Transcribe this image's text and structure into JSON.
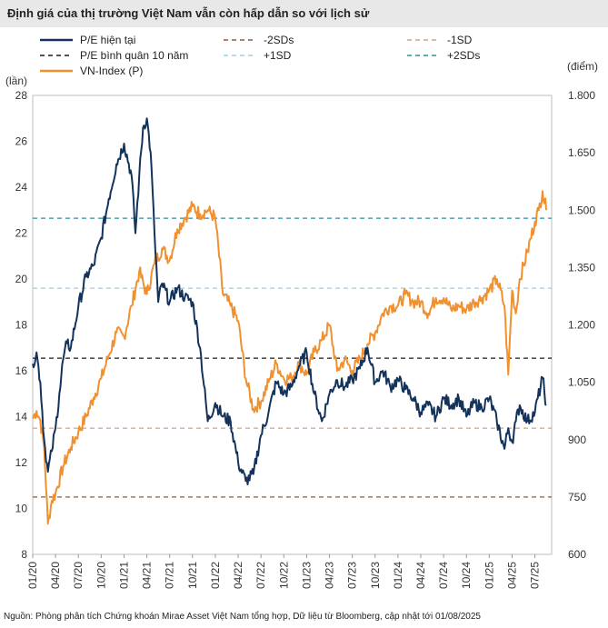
{
  "title": "Định giá của thị trường Việt Nam vẫn còn hấp dẫn so với lịch sử",
  "footer": "Nguồn: Phòng phân tích Chứng khoán Mirae Asset Việt Nam tổng hợp,  Dữ liệu từ Bloomberg, cập nhật tới 01/08/2025",
  "colors": {
    "pe": "#14335c",
    "vnindex": "#f0902f",
    "mean": "#1a1a1a",
    "minus_sd": "#c8a58c",
    "minus_2sd": "#8a5a44",
    "plus_sd": "#9fcde3",
    "plus_2sd": "#2f8fa6"
  },
  "chart_data": {
    "type": "line",
    "title": "Định giá của thị trường Việt Nam vẫn còn hấp dẫn so với lịch sử",
    "left_axis": {
      "label": "(lần)",
      "min": 8,
      "max": 28,
      "ticks": [
        "8",
        "10",
        "12",
        "14",
        "16",
        "18",
        "20",
        "22",
        "24",
        "26",
        "28"
      ]
    },
    "right_axis": {
      "label": "(điểm)",
      "min": 600,
      "max": 1800,
      "ticks": [
        "600",
        "750",
        "900",
        "1.050",
        "1.200",
        "1.350",
        "1.500",
        "1.650",
        "1.800"
      ]
    },
    "x_range": [
      "01/2020",
      "08/2025"
    ],
    "x_ticks": [
      "01/20",
      "04/20",
      "07/20",
      "10/20",
      "01/21",
      "04/21",
      "07/21",
      "10/21",
      "01/22",
      "04/22",
      "07/22",
      "10/22",
      "01/23",
      "04/23",
      "07/23",
      "10/23",
      "01/24",
      "04/24",
      "07/24",
      "10/24",
      "01/25",
      "04/25",
      "07/25"
    ],
    "legend": [
      {
        "key": "pe",
        "label": "P/E hiện tại",
        "style": "solid"
      },
      {
        "key": "minus_2sd",
        "label": "-2SDs",
        "style": "dashed"
      },
      {
        "key": "minus_sd",
        "label": "-1SD",
        "style": "dashed"
      },
      {
        "key": "mean",
        "label": "P/E bình quân 10 năm",
        "style": "dashed"
      },
      {
        "key": "plus_sd",
        "label": "+1SD",
        "style": "dashed"
      },
      {
        "key": "plus_2sd",
        "label": "+2SDs",
        "style": "dashed"
      },
      {
        "key": "vnindex",
        "label": "VN-Index (P)",
        "style": "solid"
      }
    ],
    "reference_lines": [
      {
        "key": "minus_2sd",
        "label": "-2SDs",
        "value": 10.5
      },
      {
        "key": "minus_sd",
        "label": "-1SD",
        "value": 13.5
      },
      {
        "key": "mean",
        "label": "P/E bình quân 10 năm",
        "value": 16.55
      },
      {
        "key": "plus_sd",
        "label": "+1SD",
        "value": 19.6
      },
      {
        "key": "plus_2sd",
        "label": "+2SDs",
        "value": 22.65
      }
    ],
    "series": [
      {
        "name": "P/E hiện tại",
        "axis": "left",
        "x": [
          0,
          0.5,
          1,
          1.5,
          2,
          2.5,
          3,
          3.5,
          4,
          4.5,
          5,
          6,
          7,
          8,
          9,
          10,
          11,
          12,
          13,
          13.5,
          14,
          14.5,
          15,
          15.5,
          16,
          16.5,
          17,
          18,
          19,
          20,
          21,
          22,
          23,
          24,
          25,
          26,
          27,
          28,
          29,
          30,
          31,
          32,
          33,
          34,
          35,
          36,
          37,
          38,
          39,
          40,
          41,
          42,
          43,
          44,
          45,
          46,
          47,
          48,
          49,
          50,
          51,
          52,
          53,
          54,
          55,
          56,
          57,
          58,
          59,
          60,
          61,
          62,
          62.5,
          63,
          63.5,
          64,
          65,
          66,
          67,
          67.5
        ],
        "values": [
          16.3,
          16.8,
          15.5,
          13.0,
          11.6,
          12.5,
          13.5,
          15.0,
          16.5,
          17.2,
          17.0,
          18.8,
          20.1,
          20.6,
          21.8,
          23.5,
          25.0,
          25.9,
          24.5,
          22.0,
          24.5,
          26.6,
          27.0,
          25.5,
          22.0,
          19.0,
          19.8,
          19.0,
          19.6,
          19.2,
          19.0,
          17.0,
          13.8,
          14.6,
          14.0,
          13.8,
          12.0,
          11.2,
          11.5,
          13.2,
          14.2,
          15.5,
          15.0,
          15.3,
          16.2,
          16.8,
          15.0,
          13.8,
          15.0,
          15.6,
          15.3,
          15.6,
          16.1,
          17.0,
          15.5,
          16.0,
          15.3,
          15.6,
          15.2,
          14.8,
          14.2,
          14.5,
          14.0,
          14.8,
          14.5,
          14.8,
          14.0,
          14.6,
          14.4,
          14.8,
          13.8,
          12.6,
          13.5,
          12.9,
          13.8,
          14.5,
          13.8,
          14.2,
          15.7,
          14.5
        ]
      },
      {
        "name": "VN-Index (P)",
        "axis": "right",
        "x": [
          0,
          0.5,
          1,
          1.5,
          2,
          2.5,
          3,
          4,
          5,
          6,
          7,
          8,
          9,
          10,
          11,
          12,
          13,
          14,
          15,
          16,
          17,
          18,
          19,
          20,
          21,
          22,
          23,
          24,
          25,
          26,
          27,
          28,
          29,
          30,
          31,
          32,
          33,
          34,
          35,
          36,
          37,
          38,
          39,
          40,
          41,
          42,
          43,
          44,
          45,
          46,
          47,
          48,
          49,
          50,
          51,
          52,
          53,
          54,
          55,
          56,
          57,
          58,
          59,
          60,
          61,
          62,
          62.5,
          63,
          63.5,
          64,
          65,
          66,
          66.5,
          67,
          67.5
        ],
        "values": [
          955,
          975,
          950,
          880,
          680,
          740,
          760,
          830,
          880,
          920,
          960,
          1010,
          1060,
          1120,
          1180,
          1170,
          1250,
          1340,
          1280,
          1360,
          1400,
          1370,
          1450,
          1480,
          1510,
          1490,
          1500,
          1480,
          1280,
          1250,
          1210,
          1060,
          980,
          1000,
          1050,
          1100,
          1060,
          1060,
          1100,
          1070,
          1130,
          1160,
          1200,
          1080,
          1110,
          1080,
          1110,
          1150,
          1180,
          1230,
          1250,
          1250,
          1280,
          1260,
          1260,
          1230,
          1270,
          1270,
          1240,
          1250,
          1240,
          1260,
          1270,
          1290,
          1320,
          1250,
          1070,
          1290,
          1230,
          1320,
          1390,
          1470,
          1500,
          1550,
          1500
        ]
      }
    ]
  }
}
